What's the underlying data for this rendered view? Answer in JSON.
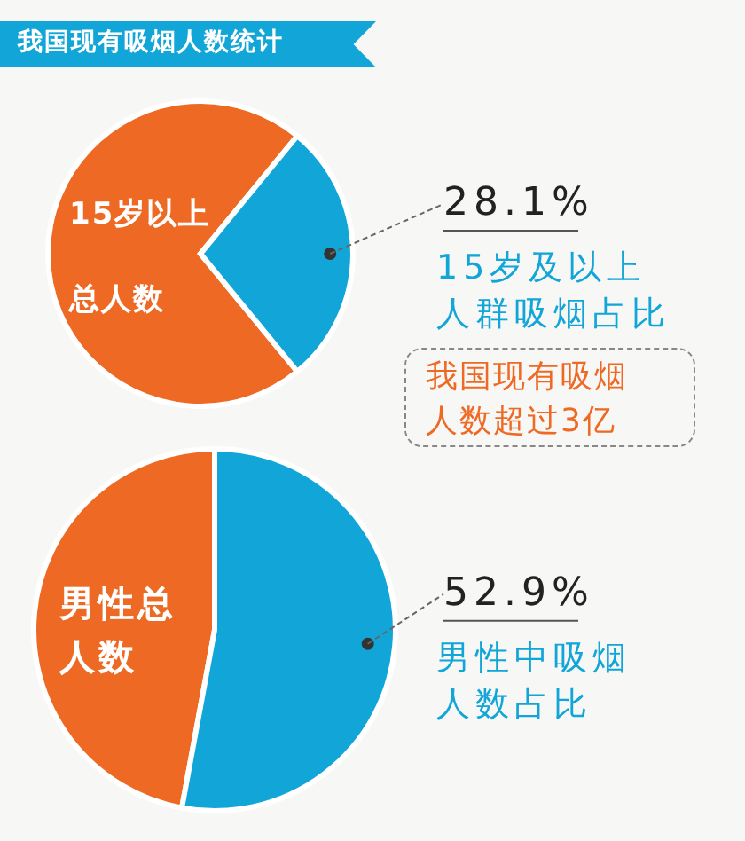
{
  "chart_data": [
    {
      "type": "pie",
      "title": "我国现有吸烟人数统计",
      "categories": [
        "15岁以上总人数",
        "15岁及以上人群吸烟占比"
      ],
      "values": [
        71.9,
        28.1
      ],
      "colors": [
        "#ee6a24",
        "#12a6d8"
      ],
      "value_labels": [
        null,
        "28.1%"
      ],
      "annotations": [
        "我国现有吸烟人数超过3亿"
      ]
    },
    {
      "type": "pie",
      "categories": [
        "男性总人数",
        "男性中吸烟人数占比"
      ],
      "values": [
        47.1,
        52.9
      ],
      "colors": [
        "#ee6a24",
        "#12a6d8"
      ],
      "value_labels": [
        null,
        "52.9%"
      ]
    }
  ]
}
